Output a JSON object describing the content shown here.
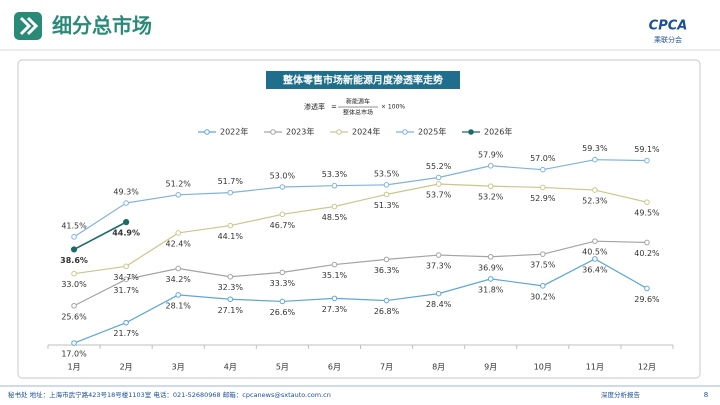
{
  "header": {
    "title": "细分总市场",
    "logo": "CPCA",
    "logo_sub": "乘联分会"
  },
  "chart_data": {
    "type": "line",
    "title": "整体零售市场新能源月度渗透率走势",
    "formula": {
      "lhs": "渗透率",
      "numerator": "新能源车",
      "denominator": "整体总市场",
      "factor": "× 100%"
    },
    "categories": [
      "1月",
      "2月",
      "3月",
      "4月",
      "5月",
      "6月",
      "7月",
      "8月",
      "9月",
      "10月",
      "11月",
      "12月"
    ],
    "ylim": [
      15,
      65
    ],
    "legend": "top",
    "series": [
      {
        "name": "2022年",
        "color": "#5ea6d6",
        "values": [
          17.0,
          21.7,
          28.1,
          27.1,
          26.6,
          27.3,
          26.8,
          28.4,
          31.8,
          30.2,
          36.4,
          29.6
        ],
        "value_labels": [
          "17.0%",
          "21.7%",
          "28.1%",
          "27.1%",
          "26.6%",
          "27.3%",
          "26.8%",
          "28.4%",
          "31.8%",
          "30.2%",
          "36.4%",
          "29.6%"
        ]
      },
      {
        "name": "2023年",
        "color": "#a3a3a3",
        "values": [
          25.6,
          31.7,
          34.2,
          32.3,
          33.3,
          35.1,
          36.3,
          37.3,
          36.9,
          37.5,
          40.5,
          40.2
        ],
        "value_labels": [
          "25.6%",
          "31.7%",
          "34.2%",
          "32.3%",
          "33.3%",
          "35.1%",
          "36.3%",
          "37.3%",
          "36.9%",
          "37.5%",
          "40.5%",
          "40.2%"
        ]
      },
      {
        "name": "2024年",
        "color": "#c9c78c",
        "values": [
          33.0,
          34.7,
          42.4,
          44.1,
          46.7,
          48.5,
          51.3,
          53.7,
          53.2,
          52.9,
          52.3,
          49.5
        ],
        "value_labels": [
          "33.0%",
          "34.7%",
          "42.4%",
          "44.1%",
          "46.7%",
          "48.5%",
          "51.3%",
          "53.7%",
          "53.2%",
          "52.9%",
          "52.3%",
          "49.5%"
        ]
      },
      {
        "name": "2025年",
        "color": "#7fb3dc",
        "values": [
          41.5,
          49.3,
          51.2,
          51.7,
          53.0,
          53.3,
          53.5,
          55.2,
          57.9,
          57.0,
          59.3,
          59.1
        ],
        "value_labels": [
          "41.5%",
          "49.3%",
          "51.2%",
          "51.7%",
          "53.0%",
          "53.3%",
          "53.5%",
          "55.2%",
          "57.9%",
          "57.0%",
          "59.3%",
          "59.1%"
        ]
      },
      {
        "name": "2026年",
        "color": "#1d6b66",
        "values": [
          38.6,
          44.9,
          null,
          null,
          null,
          null,
          null,
          null,
          null,
          null,
          null,
          null
        ],
        "value_labels": [
          "38.6%",
          "44.9%",
          null,
          null,
          null,
          null,
          null,
          null,
          null,
          null,
          null,
          null
        ]
      }
    ]
  },
  "footer": {
    "address": "秘书处  地址：上海市武宁路423号18号楼1103室  电话：021-52680968  邮箱：cpcanews@sxtauto.com.cn",
    "report": "深度分析报告",
    "page": "8"
  }
}
